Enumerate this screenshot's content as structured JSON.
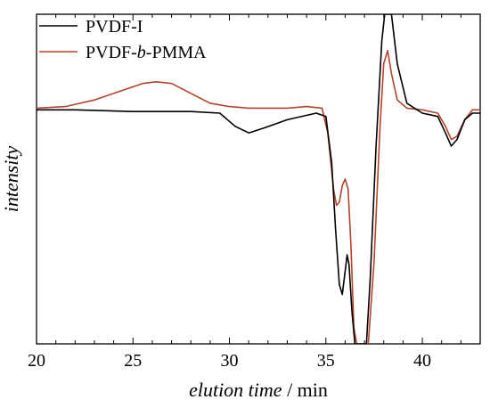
{
  "chart_data": {
    "type": "line",
    "xlabel": {
      "italic": "elution time",
      "rest": " / min"
    },
    "ylabel": "intensity",
    "xlim": [
      20,
      43
    ],
    "ylim": [
      0,
      100
    ],
    "x_ticks": [
      20,
      25,
      30,
      35,
      40
    ],
    "y_ticks_shown": false,
    "grid": false,
    "legend_position": "top-left",
    "legend": [
      {
        "parts": [
          {
            "text": "PVDF-I",
            "italic": false
          }
        ],
        "color": "#000000"
      },
      {
        "parts": [
          {
            "text": "PVDF-",
            "italic": false
          },
          {
            "text": "b",
            "italic": true
          },
          {
            "text": "-PMMA",
            "italic": false
          }
        ],
        "color": "#b5432a"
      }
    ],
    "series": [
      {
        "color": "#000000",
        "x": [
          20,
          22,
          25,
          28,
          29.5,
          30.3,
          31,
          31.8,
          33,
          34.5,
          35,
          35.3,
          35.5,
          35.7,
          35.85,
          36.0,
          36.1,
          36.2,
          36.35,
          36.5,
          36.8,
          37.1,
          37.3,
          37.6,
          37.9,
          38.05,
          38.2,
          38.4,
          38.7,
          39.2,
          40,
          40.8,
          41.2,
          41.5,
          41.8,
          42.2,
          42.6,
          43
        ],
        "y": [
          71,
          71,
          70.5,
          70.5,
          70,
          66,
          64,
          65.5,
          68,
          70,
          69,
          55,
          35,
          18,
          15,
          22,
          27,
          24,
          10,
          0,
          0,
          0,
          20,
          60,
          92,
          100,
          100,
          100,
          85,
          73,
          70,
          69,
          64,
          60,
          62,
          68,
          70,
          70
        ]
      },
      {
        "color": "#b5432a",
        "x": [
          20,
          21.5,
          23,
          24.5,
          25.5,
          26.2,
          27,
          28,
          29,
          30,
          31,
          32,
          33,
          34,
          34.8,
          35.1,
          35.4,
          35.55,
          35.7,
          35.85,
          36.0,
          36.15,
          36.3,
          36.45,
          36.6,
          36.9,
          37.2,
          37.5,
          37.8,
          38.0,
          38.2,
          38.4,
          38.7,
          39.2,
          40,
          40.8,
          41.2,
          41.5,
          41.8,
          42.2,
          42.6,
          43
        ],
        "y": [
          71.5,
          72,
          74,
          77,
          79,
          79.5,
          79,
          76,
          73,
          72,
          71.5,
          71.5,
          71.5,
          72,
          71.5,
          64,
          47,
          42,
          43,
          48,
          50,
          47,
          30,
          5,
          0,
          0,
          0,
          25,
          65,
          85,
          89,
          82,
          74,
          71.5,
          71,
          70,
          66,
          62,
          63,
          68,
          71,
          71
        ]
      }
    ]
  }
}
